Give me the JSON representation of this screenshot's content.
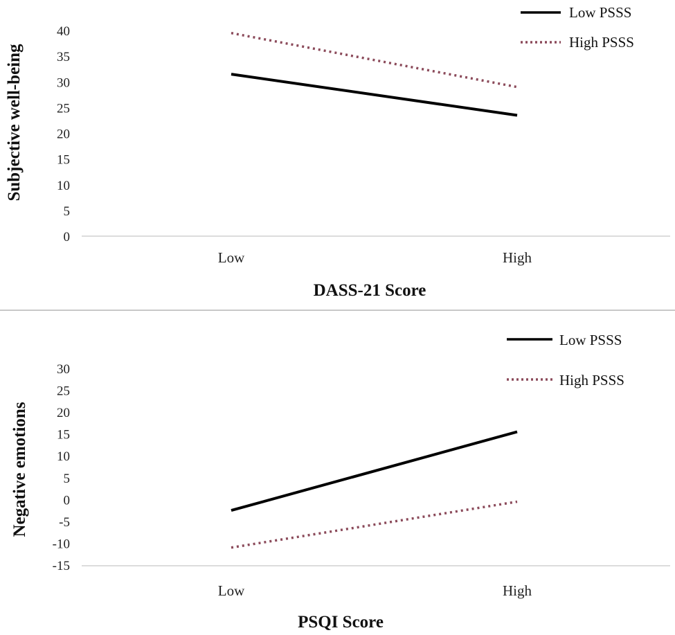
{
  "chart_data": [
    {
      "type": "line",
      "title": "",
      "xlabel": "DASS-21 Score",
      "ylabel": "Subjective well-being",
      "categories": [
        "Low",
        "High"
      ],
      "ylim": [
        0,
        40
      ],
      "yticks": [
        0,
        5,
        10,
        15,
        20,
        25,
        30,
        35,
        40
      ],
      "grid": false,
      "legend_position": "top-right",
      "series": [
        {
          "name": "Low PSSS",
          "style": "solid",
          "color": "#000000",
          "values": [
            31.5,
            23.5
          ]
        },
        {
          "name": "High PSSS",
          "style": "dotted",
          "color": "#8b4a5a",
          "values": [
            39.5,
            29
          ]
        }
      ]
    },
    {
      "type": "line",
      "title": "",
      "xlabel": "PSQI Score",
      "ylabel": "Negative emotions",
      "categories": [
        "Low",
        "High"
      ],
      "ylim": [
        -15,
        30
      ],
      "yticks": [
        -15,
        -10,
        -5,
        0,
        5,
        10,
        15,
        20,
        25,
        30
      ],
      "grid": false,
      "legend_position": "top-right",
      "series": [
        {
          "name": "Low PSSS",
          "style": "solid",
          "color": "#000000",
          "values": [
            -2.5,
            15.5
          ]
        },
        {
          "name": "High PSSS",
          "style": "dotted",
          "color": "#8b4a5a",
          "values": [
            -11,
            -0.5
          ]
        }
      ]
    }
  ]
}
